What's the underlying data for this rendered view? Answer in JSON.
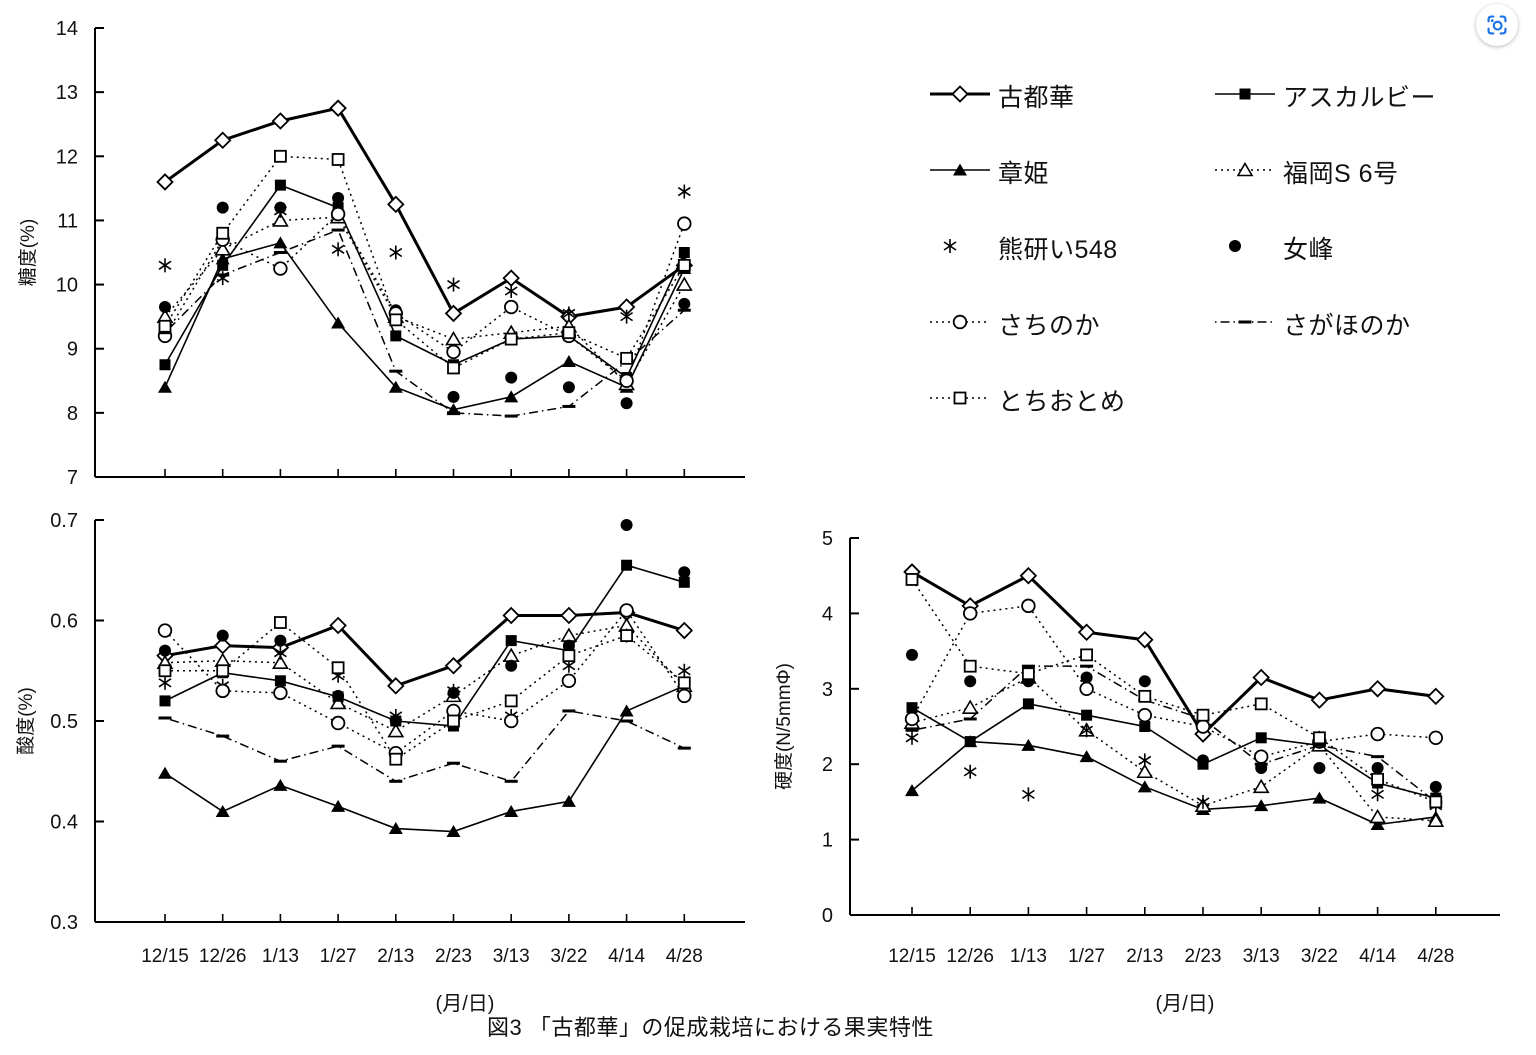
{
  "figure_caption": "図3 「古都華」の促成栽培における果実特性",
  "x_axis_title": "(月/日)",
  "lens_icon": {
    "color": "#1a73e8"
  },
  "series_styles": {
    "kotoka": {
      "marker": "open-diamond",
      "line": "solid",
      "width": 3
    },
    "asukarubi": {
      "marker": "filled-square",
      "line": "solid",
      "width": 1.6
    },
    "akihime": {
      "marker": "filled-triangle",
      "line": "solid",
      "width": 1.6
    },
    "fukuoka": {
      "marker": "open-triangle",
      "line": "dotted",
      "width": 1.5
    },
    "kumaken": {
      "marker": "asterisk",
      "line": "none",
      "width": 1.5
    },
    "nyoho": {
      "marker": "filled-circle",
      "line": "none",
      "width": 1.5
    },
    "sachinoka": {
      "marker": "open-circle",
      "line": "dotted",
      "width": 1.5
    },
    "sagahonoka": {
      "marker": "dash",
      "line": "dashdot",
      "width": 1.5
    },
    "tochiotome": {
      "marker": "open-square",
      "line": "dotted",
      "width": 1.5
    }
  },
  "legend": {
    "items": [
      {
        "key": "kotoka",
        "label": "古都華"
      },
      {
        "key": "asukarubi",
        "label": "アスカルビー"
      },
      {
        "key": "akihime",
        "label": "章姫"
      },
      {
        "key": "fukuoka",
        "label": "福岡S 6号"
      },
      {
        "key": "kumaken",
        "label": "熊研い548"
      },
      {
        "key": "nyoho",
        "label": "女峰"
      },
      {
        "key": "sachinoka",
        "label": "さちのか"
      },
      {
        "key": "sagahonoka",
        "label": "さがほのか"
      },
      {
        "key": "tochiotome",
        "label": "とちおとめ"
      }
    ]
  },
  "chart_data": [
    {
      "id": "sugar",
      "type": "line",
      "ylabel": "糖度(%)",
      "xlabel": "",
      "ylim": [
        7,
        14
      ],
      "yticks": [
        "14",
        "13",
        "12",
        "11",
        "10",
        "9",
        "8",
        "7"
      ],
      "show_x_labels": false,
      "categories": [
        "12/15",
        "12/26",
        "1/13",
        "1/27",
        "2/13",
        "2/23",
        "3/13",
        "3/22",
        "4/14",
        "4/28"
      ],
      "series": [
        {
          "key": "kotoka",
          "name": "古都華",
          "values": [
            11.6,
            12.25,
            12.55,
            12.75,
            11.25,
            9.55,
            10.1,
            9.5,
            9.65,
            10.3
          ]
        },
        {
          "key": "asukarubi",
          "name": "アスカルビー",
          "values": [
            8.75,
            10.3,
            11.55,
            11.2,
            9.2,
            8.75,
            9.15,
            9.2,
            8.55,
            10.5
          ]
        },
        {
          "key": "akihime",
          "name": "章姫",
          "values": [
            8.4,
            10.4,
            10.65,
            9.4,
            8.4,
            8.05,
            8.25,
            8.8,
            8.4,
            10.25
          ]
        },
        {
          "key": "fukuoka",
          "name": "福岡S 6号",
          "values": [
            9.5,
            10.55,
            11.0,
            11.05,
            9.5,
            9.15,
            9.25,
            9.35,
            8.45,
            10.0
          ]
        },
        {
          "key": "kumaken",
          "name": "熊研い548",
          "values": [
            10.3,
            10.1,
            11.15,
            10.55,
            10.5,
            10.0,
            9.9,
            9.55,
            9.5,
            11.45
          ]
        },
        {
          "key": "nyoho",
          "name": "女峰",
          "values": [
            9.65,
            11.2,
            11.2,
            11.35,
            9.6,
            8.25,
            8.55,
            8.4,
            8.15,
            9.7
          ]
        },
        {
          "key": "sachinoka",
          "name": "さちのか",
          "values": [
            9.2,
            10.7,
            10.25,
            11.1,
            9.55,
            8.95,
            9.65,
            9.2,
            8.5,
            10.95
          ]
        },
        {
          "key": "sagahonoka",
          "name": "さがほのか",
          "values": [
            9.25,
            10.15,
            10.5,
            10.85,
            8.65,
            8.0,
            7.95,
            8.1,
            8.8,
            9.6
          ]
        },
        {
          "key": "tochiotome",
          "name": "とちおとめ",
          "values": [
            9.35,
            10.8,
            12.0,
            11.95,
            9.45,
            8.7,
            9.15,
            9.25,
            8.85,
            10.3
          ]
        }
      ]
    },
    {
      "id": "acid",
      "type": "line",
      "ylabel": "酸度(%)",
      "xlabel": "(月/日)",
      "ylim": [
        0.3,
        0.7
      ],
      "yticks": [
        "0.7",
        "0.6",
        "0.5",
        "0.4",
        "0.3"
      ],
      "show_x_labels": true,
      "categories": [
        "12/15",
        "12/26",
        "1/13",
        "1/27",
        "2/13",
        "2/23",
        "3/13",
        "3/22",
        "4/14",
        "4/28"
      ],
      "series": [
        {
          "key": "kotoka",
          "name": "古都華",
          "values": [
            0.565,
            0.575,
            0.573,
            0.595,
            0.535,
            0.555,
            0.605,
            0.605,
            0.608,
            0.59
          ]
        },
        {
          "key": "asukarubi",
          "name": "アスカルビー",
          "values": [
            0.52,
            0.548,
            0.54,
            0.524,
            0.5,
            0.495,
            0.58,
            0.57,
            0.655,
            0.638
          ]
        },
        {
          "key": "akihime",
          "name": "章姫",
          "values": [
            0.448,
            0.41,
            0.436,
            0.415,
            0.393,
            0.39,
            0.41,
            0.42,
            0.51,
            0.535
          ]
        },
        {
          "key": "fukuoka",
          "name": "福岡S 6号",
          "values": [
            0.558,
            0.56,
            0.558,
            0.518,
            0.49,
            0.525,
            0.565,
            0.585,
            0.595,
            0.535
          ]
        },
        {
          "key": "kumaken",
          "name": "熊研い548",
          "values": [
            0.538,
            0.535,
            0.568,
            0.545,
            0.505,
            0.53,
            0.505,
            0.555,
            0.585,
            0.55
          ]
        },
        {
          "key": "nyoho",
          "name": "女峰",
          "values": [
            0.57,
            0.585,
            0.58,
            0.525,
            0.5,
            0.528,
            0.555,
            0.575,
            0.695,
            0.648
          ]
        },
        {
          "key": "sachinoka",
          "name": "さちのか",
          "values": [
            0.59,
            0.53,
            0.528,
            0.498,
            0.468,
            0.51,
            0.5,
            0.54,
            0.61,
            0.525
          ]
        },
        {
          "key": "sagahonoka",
          "name": "さがほのか",
          "values": [
            0.503,
            0.485,
            0.46,
            0.475,
            0.44,
            0.458,
            0.44,
            0.51,
            0.5,
            0.473
          ]
        },
        {
          "key": "tochiotome",
          "name": "とちおとめ",
          "values": [
            0.55,
            0.55,
            0.598,
            0.553,
            0.462,
            0.5,
            0.52,
            0.565,
            0.585,
            0.538
          ]
        }
      ]
    },
    {
      "id": "hardness",
      "type": "line",
      "ylabel": "硬度(N/5mmΦ)",
      "xlabel": "(月/日)",
      "ylim": [
        0,
        5
      ],
      "yticks": [
        "5",
        "4",
        "3",
        "2",
        "1",
        "0"
      ],
      "show_x_labels": true,
      "categories": [
        "12/15",
        "12/26",
        "1/13",
        "1/27",
        "2/13",
        "2/23",
        "3/13",
        "3/22",
        "4/14",
        "4/28"
      ],
      "series": [
        {
          "key": "kotoka",
          "name": "古都華",
          "values": [
            4.55,
            4.1,
            4.5,
            3.75,
            3.65,
            2.4,
            3.15,
            2.85,
            3.0,
            2.9
          ]
        },
        {
          "key": "asukarubi",
          "name": "アスカルビー",
          "values": [
            2.75,
            2.3,
            2.8,
            2.65,
            2.5,
            2.0,
            2.35,
            2.25,
            1.75,
            1.55
          ]
        },
        {
          "key": "akihime",
          "name": "章姫",
          "values": [
            1.65,
            2.3,
            2.25,
            2.1,
            1.7,
            1.4,
            1.45,
            1.55,
            1.2,
            1.3
          ]
        },
        {
          "key": "fukuoka",
          "name": "福岡S 6号",
          "values": [
            2.55,
            2.75,
            3.15,
            2.45,
            1.9,
            1.45,
            1.7,
            2.25,
            1.3,
            1.25
          ]
        },
        {
          "key": "kumaken",
          "name": "熊研い548",
          "values": [
            2.35,
            1.9,
            1.6,
            2.45,
            2.05,
            1.5,
            2.1,
            2.35,
            1.6,
            1.45
          ]
        },
        {
          "key": "nyoho",
          "name": "女峰",
          "values": [
            3.45,
            3.1,
            3.1,
            3.15,
            3.1,
            2.05,
            1.95,
            1.95,
            1.95,
            1.7
          ]
        },
        {
          "key": "sachinoka",
          "name": "さちのか",
          "values": [
            2.6,
            4.0,
            4.1,
            3.0,
            2.65,
            2.5,
            2.1,
            2.3,
            2.4,
            2.35
          ]
        },
        {
          "key": "sagahonoka",
          "name": "さがほのか",
          "values": [
            2.45,
            2.6,
            3.3,
            3.3,
            2.85,
            2.6,
            2.0,
            2.25,
            2.1,
            1.5
          ]
        },
        {
          "key": "tochiotome",
          "name": "とちおとめ",
          "values": [
            4.45,
            3.3,
            3.2,
            3.45,
            2.9,
            2.65,
            2.8,
            2.35,
            1.8,
            1.5
          ]
        }
      ]
    }
  ]
}
